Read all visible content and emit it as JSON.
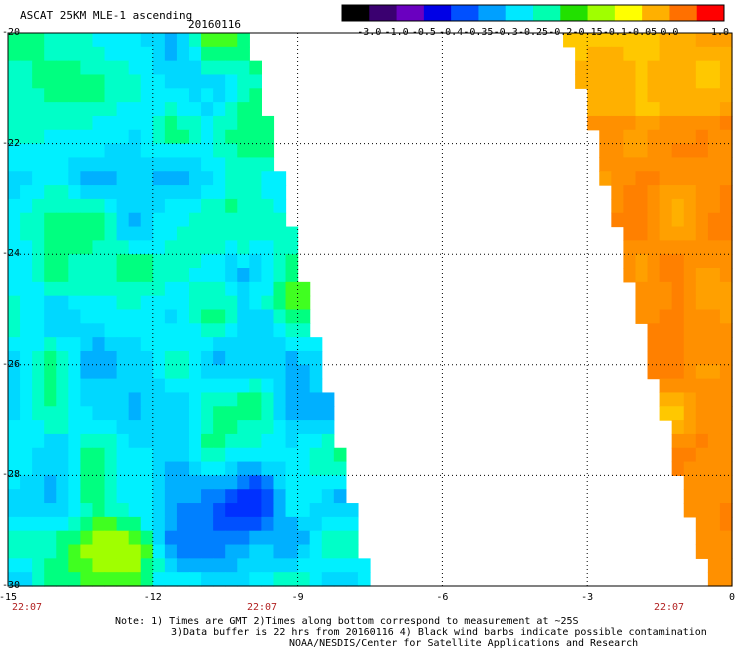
{
  "header": {
    "product": "ASCAT 25KM MLE-1 ascending",
    "date": "20160116"
  },
  "colorbar": {
    "labels": [
      "-3.0",
      "-1.0",
      "-0.5",
      "-0.4",
      "-0.35",
      "-0.3",
      "-0.25",
      "-0.2",
      "-0.15",
      "-0.1",
      "-0.05",
      "0.0",
      "1.0"
    ],
    "colors": [
      "#000000",
      "#3a0070",
      "#6a00c0",
      "#0000e6",
      "#0050ff",
      "#00a0ff",
      "#00e8ff",
      "#00ffb0",
      "#22e000",
      "#a0ff00",
      "#ffff00",
      "#ffb000",
      "#ff7000",
      "#ff0000"
    ]
  },
  "map": {
    "lat_labels": [
      "-20",
      "-22",
      "-24",
      "-26",
      "-28",
      "-30"
    ],
    "lon_labels": [
      "-15",
      "-12",
      "-9",
      "-6",
      "-3",
      "0"
    ],
    "lat_range": [
      -30,
      -20
    ],
    "lon_range": [
      -15,
      0
    ],
    "time_labels": [
      "22:07",
      "22:07",
      "22:07"
    ],
    "swaths": [
      {
        "name": "west",
        "lon_west": -15,
        "lon_east_top": -10.1,
        "lon_east_bottom": -7.6,
        "value_range": [
          -0.45,
          -0.1
        ]
      },
      {
        "name": "east",
        "lon_west_top": -3.5,
        "lon_west_bottom": -0.6,
        "lon_east": 0,
        "value_range": [
          -0.05,
          0.0
        ]
      }
    ]
  },
  "notes": {
    "line1": "Note: 1) Times are GMT 2)Times along bottom correspond to measurement at ~25S",
    "line2": "3)Data buffer is 22 hrs from 20160116 4) Black wind barbs indicate possible contamination",
    "line3": "NOAA/NESDIS/Center for Satellite Applications and Research"
  }
}
